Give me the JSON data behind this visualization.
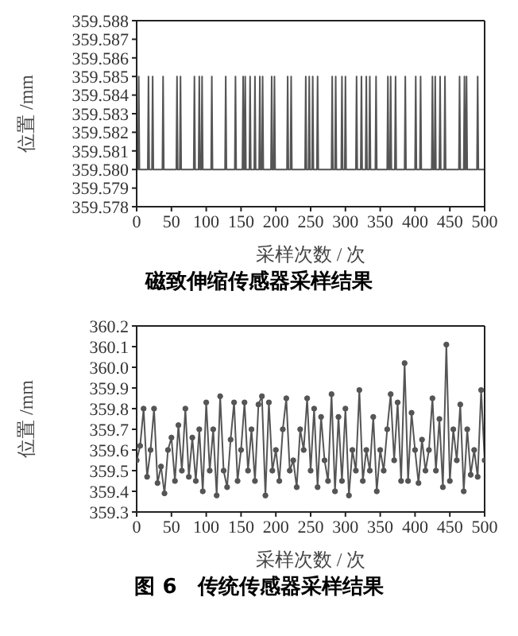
{
  "chart_data": [
    {
      "type": "line",
      "title": "磁致伸缩传感器采样结果",
      "xlabel": "采样次数 / 次",
      "ylabel": "位置 /mm",
      "xlim": [
        0,
        500
      ],
      "xticks": [
        0,
        50,
        100,
        150,
        200,
        250,
        300,
        350,
        400,
        450,
        500
      ],
      "ylim": [
        359.578,
        359.588
      ],
      "yticks": [
        359.578,
        359.579,
        {
          "value": 359.58,
          "label": "359.580"
        },
        359.581,
        359.582,
        359.583,
        359.584,
        359.585,
        359.586,
        359.587,
        359.588
      ],
      "grid": false,
      "marker": "none",
      "line_style": "solid",
      "series": [
        {
          "color": "#555555",
          "x": [
            0,
            2,
            3,
            4,
            16,
            17,
            18,
            22,
            23,
            24,
            37,
            38,
            39,
            57,
            58,
            59,
            62,
            63,
            64,
            82,
            83,
            84,
            89,
            90,
            91,
            93,
            94,
            95,
            107,
            108,
            109,
            127,
            128,
            129,
            141,
            142,
            143,
            152,
            153,
            154,
            155,
            156,
            157,
            162,
            163,
            164,
            169,
            170,
            171,
            176,
            177,
            178,
            180,
            181,
            182,
            193,
            194,
            195,
            197,
            198,
            199,
            216,
            217,
            218,
            221,
            222,
            223,
            242,
            243,
            244,
            247,
            248,
            249,
            252,
            253,
            254,
            259,
            260,
            261,
            280,
            281,
            282,
            285,
            286,
            287,
            294,
            295,
            296,
            299,
            300,
            301,
            315,
            316,
            317,
            322,
            323,
            324,
            329,
            330,
            331,
            334,
            335,
            336,
            343,
            344,
            345,
            360,
            361,
            362,
            364,
            365,
            366,
            371,
            372,
            373,
            385,
            386,
            387,
            400,
            401,
            402,
            407,
            408,
            409,
            424,
            425,
            426,
            428,
            429,
            430,
            435,
            436,
            437,
            442,
            443,
            444,
            463,
            464,
            465,
            470,
            471,
            472,
            473,
            474,
            475,
            489,
            490,
            491,
            500
          ],
          "values": [
            359.58,
            359.58,
            359.585,
            359.58,
            359.58,
            359.585,
            359.58,
            359.58,
            359.585,
            359.58,
            359.58,
            359.585,
            359.58,
            359.58,
            359.585,
            359.58,
            359.58,
            359.585,
            359.58,
            359.58,
            359.585,
            359.58,
            359.58,
            359.585,
            359.58,
            359.58,
            359.585,
            359.58,
            359.58,
            359.585,
            359.58,
            359.58,
            359.585,
            359.58,
            359.58,
            359.585,
            359.58,
            359.58,
            359.585,
            359.58,
            359.58,
            359.585,
            359.58,
            359.58,
            359.585,
            359.58,
            359.58,
            359.585,
            359.58,
            359.58,
            359.585,
            359.58,
            359.58,
            359.585,
            359.58,
            359.58,
            359.585,
            359.58,
            359.58,
            359.585,
            359.58,
            359.58,
            359.585,
            359.58,
            359.58,
            359.585,
            359.58,
            359.58,
            359.585,
            359.58,
            359.58,
            359.585,
            359.58,
            359.58,
            359.585,
            359.58,
            359.58,
            359.585,
            359.58,
            359.58,
            359.585,
            359.58,
            359.58,
            359.585,
            359.58,
            359.58,
            359.585,
            359.58,
            359.58,
            359.585,
            359.58,
            359.58,
            359.585,
            359.58,
            359.58,
            359.585,
            359.58,
            359.58,
            359.585,
            359.58,
            359.58,
            359.585,
            359.58,
            359.58,
            359.585,
            359.58,
            359.58,
            359.585,
            359.58,
            359.58,
            359.585,
            359.58,
            359.58,
            359.585,
            359.58,
            359.58,
            359.585,
            359.58,
            359.58,
            359.585,
            359.58,
            359.58,
            359.585,
            359.58,
            359.58,
            359.585,
            359.58,
            359.58,
            359.585,
            359.58,
            359.58,
            359.585,
            359.58,
            359.58,
            359.585,
            359.58,
            359.58,
            359.585,
            359.58,
            359.58,
            359.585,
            359.58,
            359.58,
            359.585,
            359.58,
            359.58,
            359.585,
            359.58,
            359.58
          ]
        }
      ]
    },
    {
      "type": "line",
      "title": "图 6　传统传感器采样结果",
      "xlabel": "采样次数 / 次",
      "ylabel": "位置 /mm",
      "xlim": [
        0,
        500
      ],
      "xticks": [
        0,
        50,
        100,
        150,
        200,
        250,
        300,
        350,
        400,
        450,
        500
      ],
      "ylim": [
        359.3,
        360.2
      ],
      "yticks": [
        359.3,
        359.4,
        359.5,
        359.6,
        359.7,
        359.8,
        359.9,
        {
          "value": 360,
          "label": "360.0"
        },
        360.1,
        360.2
      ],
      "grid": false,
      "marker": "circle",
      "line_style": "solid",
      "series": [
        {
          "color": "#555555",
          "x": [
            0,
            5,
            10,
            15,
            20,
            25,
            30,
            35,
            40,
            45,
            50,
            55,
            60,
            65,
            70,
            75,
            80,
            85,
            90,
            95,
            100,
            105,
            110,
            115,
            120,
            125,
            130,
            135,
            140,
            145,
            150,
            155,
            160,
            165,
            170,
            175,
            180,
            185,
            190,
            195,
            200,
            205,
            210,
            215,
            220,
            225,
            230,
            235,
            240,
            245,
            250,
            255,
            260,
            265,
            270,
            275,
            280,
            285,
            290,
            295,
            300,
            305,
            310,
            315,
            320,
            325,
            330,
            335,
            340,
            345,
            350,
            355,
            360,
            365,
            370,
            375,
            380,
            385,
            390,
            395,
            400,
            405,
            410,
            415,
            420,
            425,
            430,
            435,
            440,
            445,
            450,
            455,
            460,
            465,
            470,
            475,
            480,
            485,
            490,
            495,
            500
          ],
          "values": [
            359.55,
            359.62,
            359.8,
            359.47,
            359.6,
            359.8,
            359.44,
            359.52,
            359.39,
            359.6,
            359.66,
            359.45,
            359.72,
            359.5,
            359.8,
            359.47,
            359.66,
            359.45,
            359.7,
            359.4,
            359.83,
            359.5,
            359.7,
            359.38,
            359.86,
            359.5,
            359.42,
            359.65,
            359.83,
            359.45,
            359.6,
            359.83,
            359.5,
            359.7,
            359.45,
            359.82,
            359.86,
            359.38,
            359.83,
            359.5,
            359.6,
            359.45,
            359.7,
            359.85,
            359.5,
            359.55,
            359.42,
            359.7,
            359.6,
            359.85,
            359.5,
            359.8,
            359.42,
            359.76,
            359.55,
            359.45,
            359.87,
            359.4,
            359.76,
            359.45,
            359.8,
            359.38,
            359.6,
            359.5,
            359.89,
            359.45,
            359.6,
            359.5,
            359.76,
            359.4,
            359.6,
            359.5,
            359.7,
            359.87,
            359.55,
            359.83,
            359.45,
            360.02,
            359.45,
            359.78,
            359.6,
            359.44,
            359.65,
            359.5,
            359.6,
            359.85,
            359.5,
            359.75,
            359.42,
            360.11,
            359.45,
            359.7,
            359.55,
            359.82,
            359.4,
            359.7,
            359.48,
            359.6,
            359.47,
            359.89,
            359.55
          ]
        }
      ]
    }
  ]
}
